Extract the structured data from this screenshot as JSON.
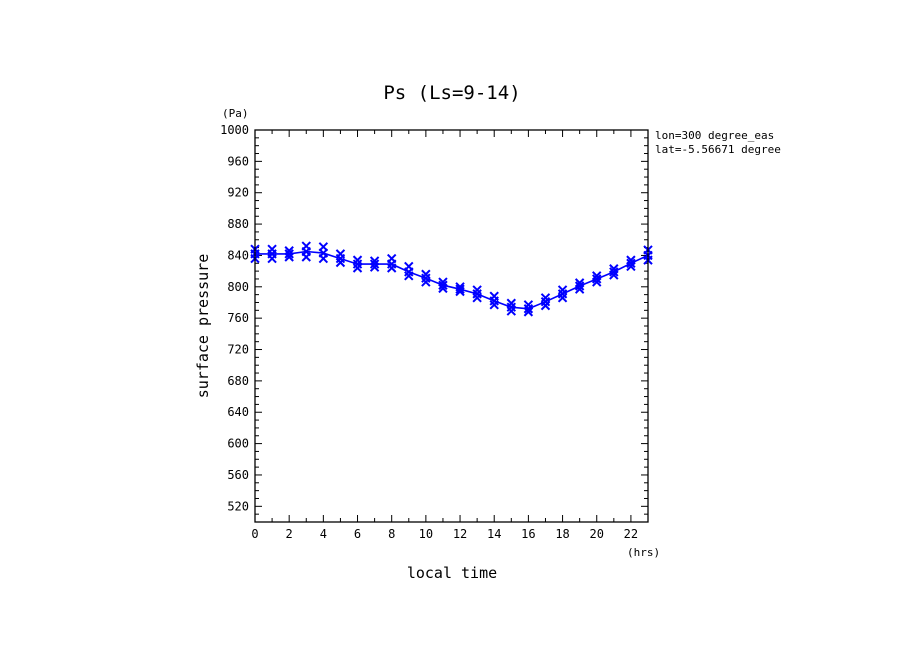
{
  "chart_data": {
    "type": "line",
    "title": "Ps (Ls=9-14)",
    "xlabel": "local time",
    "ylabel": "surface pressure",
    "x_unit": "(hrs)",
    "y_unit": "(Pa)",
    "annotations": [
      "lon=300 degree_eas",
      "lat=-5.56671 degree"
    ],
    "xlim": [
      0,
      23
    ],
    "ylim": [
      500,
      1000
    ],
    "x_ticks": [
      0,
      2,
      4,
      6,
      8,
      10,
      12,
      14,
      16,
      18,
      20,
      22
    ],
    "y_ticks": [
      520,
      560,
      600,
      640,
      680,
      720,
      760,
      800,
      840,
      880,
      920,
      960,
      1000
    ],
    "grid": false,
    "line_color": "#0000ff",
    "marker": "x",
    "marker_color": "#0000ff",
    "series": [
      {
        "x": [
          0,
          1,
          2,
          3,
          4,
          5,
          6,
          7,
          8,
          9,
          10,
          11,
          12,
          13,
          14,
          15,
          16,
          17,
          18,
          19,
          20,
          21,
          22,
          23
        ],
        "values": [
          842,
          842,
          842,
          845,
          843,
          836,
          829,
          829,
          829,
          819,
          811,
          802,
          797,
          791,
          782,
          774,
          772,
          781,
          791,
          801,
          810,
          819,
          830,
          840
        ],
        "samples": [
          [
            836,
            842,
            848
          ],
          [
            836,
            842,
            848
          ],
          [
            838,
            842,
            846
          ],
          [
            838,
            845,
            852
          ],
          [
            836,
            843,
            851
          ],
          [
            831,
            836,
            842
          ],
          [
            824,
            829,
            834
          ],
          [
            825,
            829,
            833
          ],
          [
            824,
            829,
            836
          ],
          [
            814,
            819,
            826
          ],
          [
            806,
            811,
            816
          ],
          [
            798,
            802,
            806
          ],
          [
            794,
            797,
            800
          ],
          [
            786,
            791,
            796
          ],
          [
            777,
            782,
            788
          ],
          [
            769,
            774,
            779
          ],
          [
            768,
            772,
            777
          ],
          [
            776,
            781,
            786
          ],
          [
            786,
            791,
            796
          ],
          [
            797,
            801,
            805
          ],
          [
            806,
            810,
            814
          ],
          [
            815,
            819,
            823
          ],
          [
            826,
            830,
            834
          ],
          [
            834,
            840,
            847
          ]
        ]
      }
    ]
  }
}
